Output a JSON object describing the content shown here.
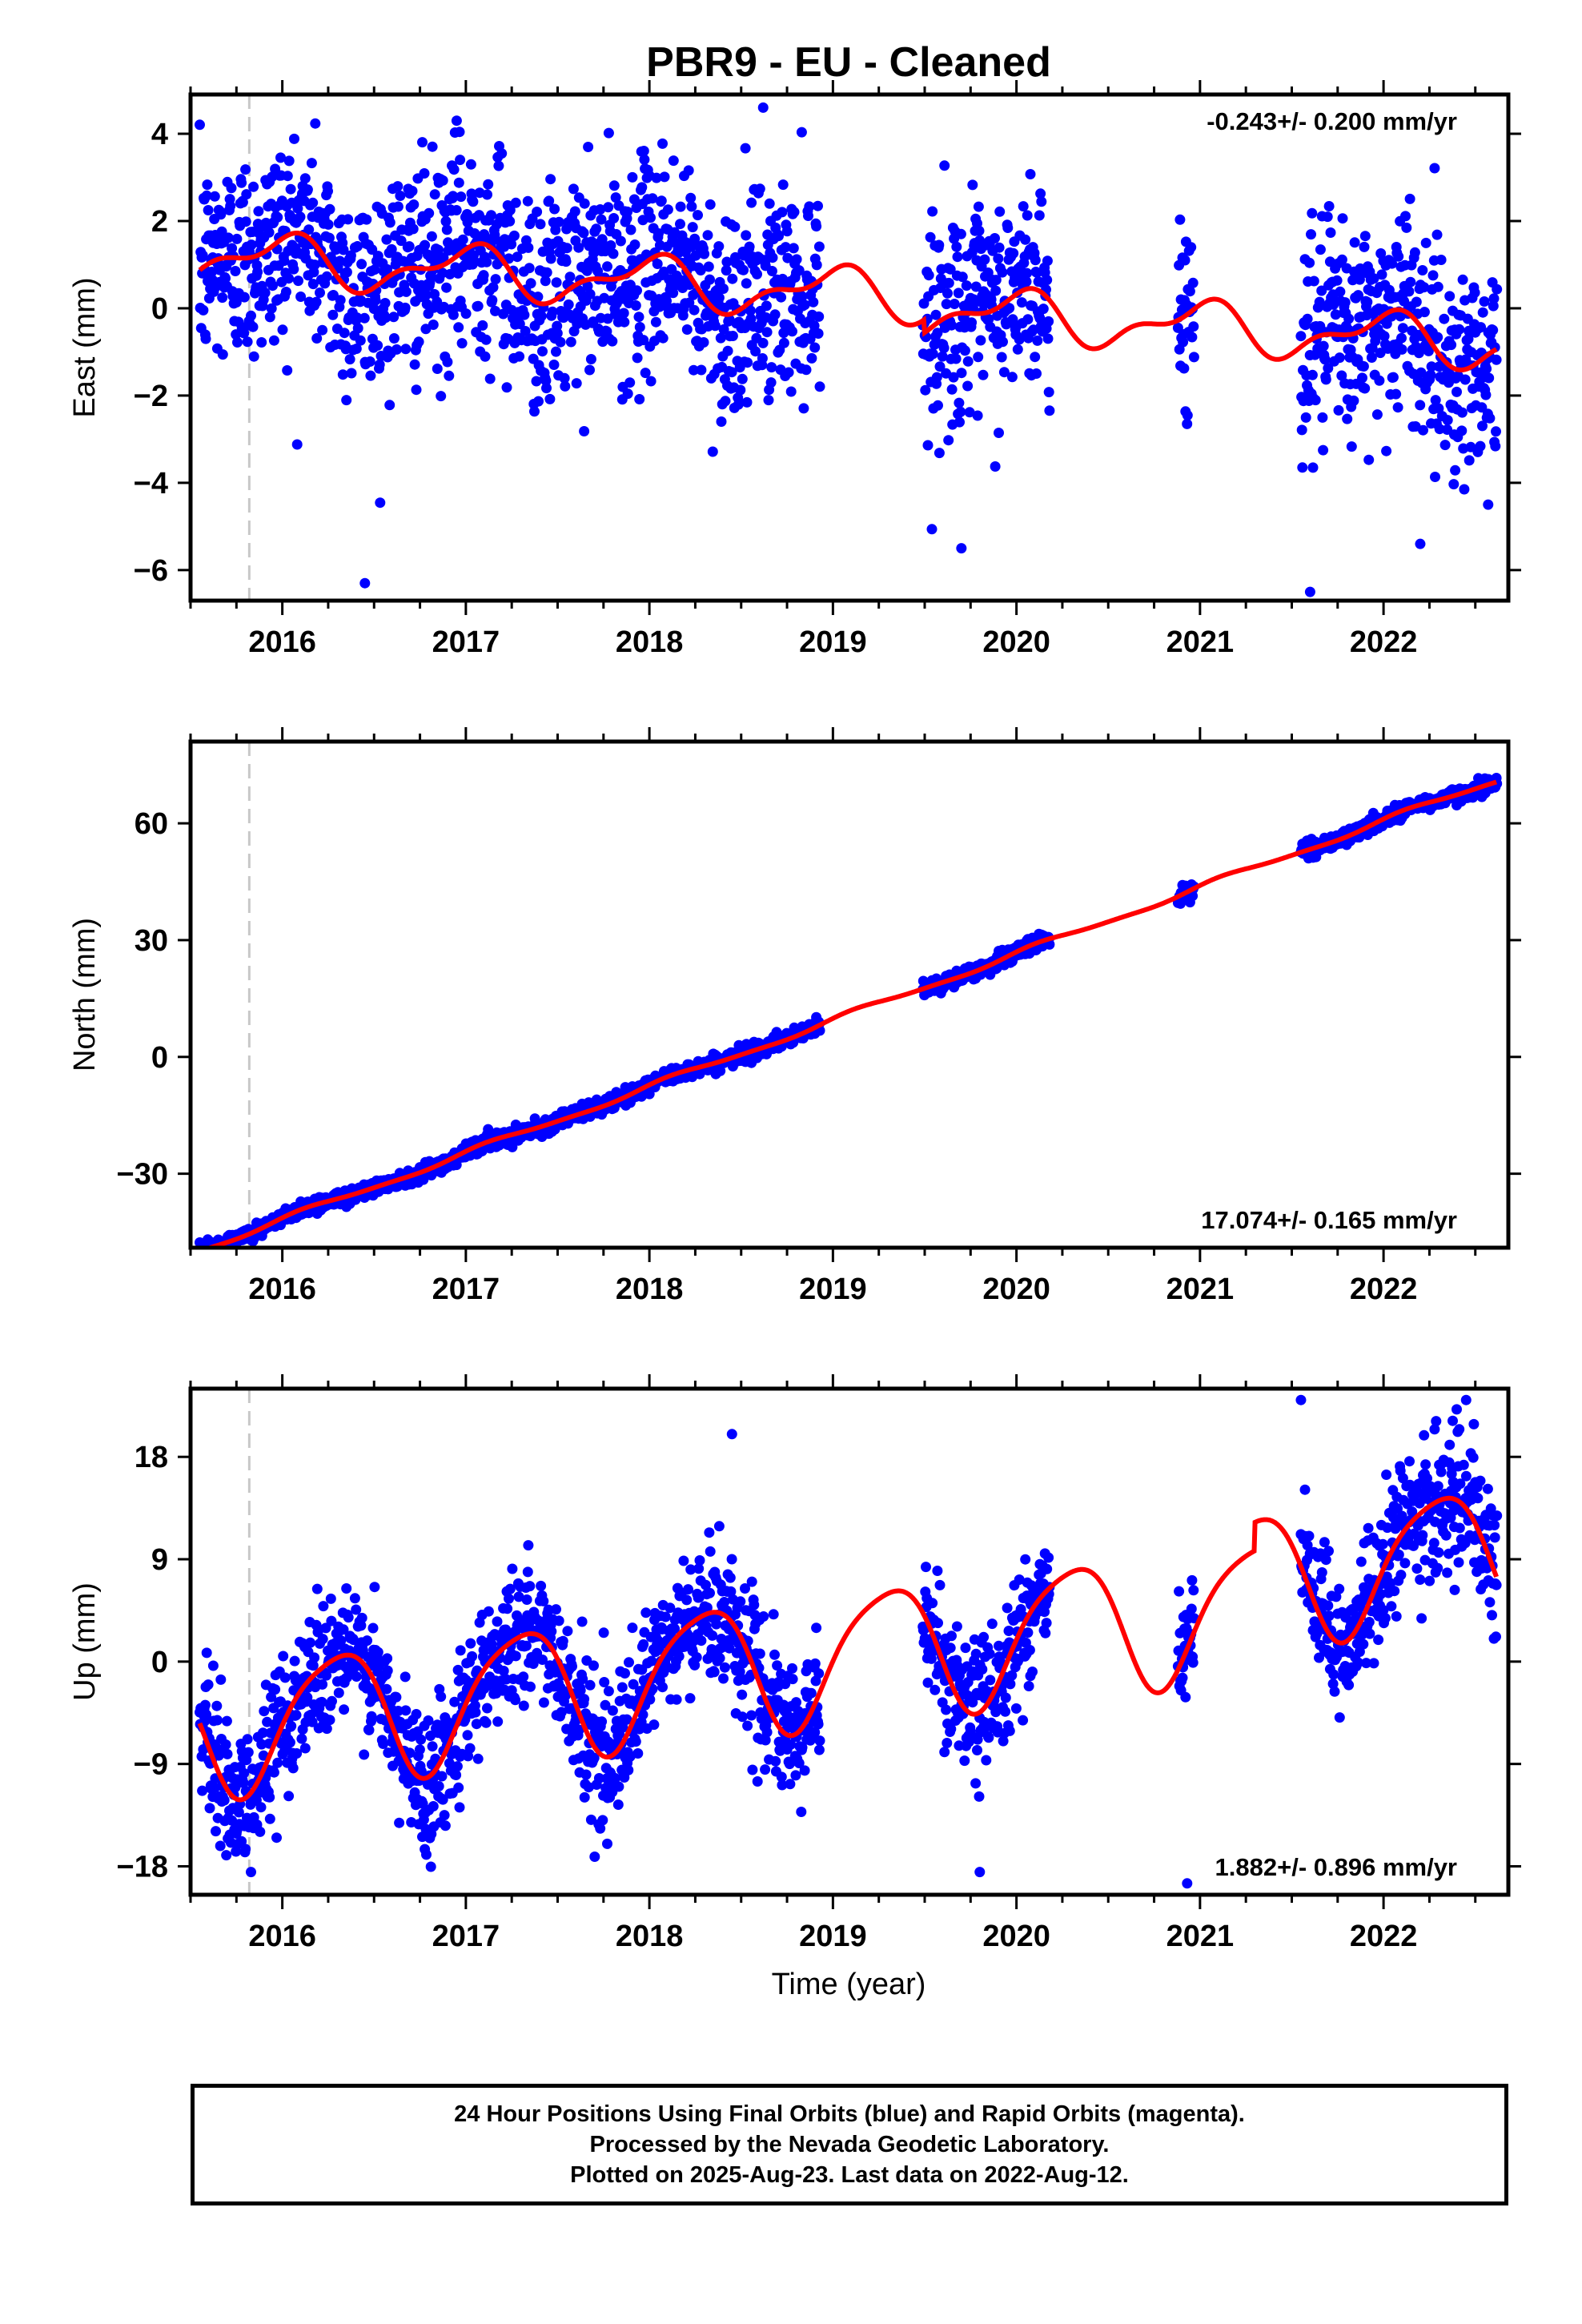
{
  "title": "PBR9  - EU - Cleaned",
  "xlabel": "Time (year)",
  "footer": {
    "line1": "24 Hour Positions Using Final Orbits (blue) and Rapid Orbits (magenta).",
    "line2": "Processed by the Nevada Geodetic Laboratory.",
    "line3": "Plotted on 2025-Aug-23. Last data on 2022-Aug-12."
  },
  "colors": {
    "points": "#0000ff",
    "model": "#ff0000",
    "dashed": "#c8c8c8"
  },
  "chart_data": [
    {
      "type": "scatter",
      "component": "East",
      "ylabel": "East (mm)",
      "rate_label": "-0.243+/- 0.200 mm/yr",
      "rate_position": "top-right",
      "xlim": [
        2015.5,
        2022.68
      ],
      "ylim": [
        -6.7,
        4.9
      ],
      "yticks": [
        4,
        2,
        0,
        -2,
        -4,
        -6
      ],
      "ytick_labels": [
        "4",
        "2",
        "0",
        "−2",
        "−4",
        "−6"
      ],
      "xticks": [
        2016,
        2017,
        2018,
        2019,
        2020,
        2021,
        2022
      ],
      "xtick_labels": [
        "2016",
        "2017",
        "2018",
        "2019",
        "2020",
        "2021",
        "2022"
      ],
      "dashed_line_x": 2015.82,
      "model": {
        "rate": -0.243,
        "intercept": 0.5,
        "annual_sin": 0.0,
        "annual_cos": 0.5,
        "semi_sin": 0.25,
        "semi_cos": 0.0,
        "offset_after": {
          "x": 2019.5,
          "value": -0.3
        }
      },
      "scatter_sigma": 1.2,
      "segments": [
        [
          2015.55,
          2018.93
        ],
        [
          2019.49,
          2020.18
        ],
        [
          2020.88,
          2020.97
        ],
        [
          2021.55,
          2022.62
        ]
      ],
      "outliers": [
        [
          2016.45,
          -6.3
        ],
        [
          2021.6,
          -6.5
        ],
        [
          2018.62,
          4.6
        ],
        [
          2016.95,
          4.3
        ],
        [
          2019.7,
          -5.5
        ],
        [
          2022.57,
          -4.5
        ],
        [
          2022.2,
          -5.4
        ]
      ]
    },
    {
      "type": "scatter",
      "component": "North",
      "ylabel": "North (mm)",
      "rate_label": "17.074+/- 0.165 mm/yr",
      "rate_position": "bottom-right",
      "xlim": [
        2015.5,
        2022.68
      ],
      "ylim": [
        -49,
        81
      ],
      "yticks": [
        60,
        30,
        0,
        -30
      ],
      "ytick_labels": [
        "60",
        "30",
        "0",
        "−30"
      ],
      "xticks": [
        2016,
        2017,
        2018,
        2019,
        2020,
        2021,
        2022
      ],
      "xtick_labels": [
        "2016",
        "2017",
        "2018",
        "2019",
        "2020",
        "2021",
        "2022"
      ],
      "dashed_line_x": 2015.82,
      "model": {
        "rate": 17.074,
        "intercept": 0,
        "t0": 2018.45,
        "annual_sin": 0.6,
        "annual_cos": 0.4,
        "semi_sin": 0.2,
        "semi_cos": 0.1
      },
      "scatter_sigma": 1.0,
      "segments": [
        [
          2015.55,
          2018.93
        ],
        [
          2019.49,
          2020.18
        ],
        [
          2020.88,
          2020.97
        ],
        [
          2021.55,
          2022.62
        ]
      ],
      "outliers": []
    },
    {
      "type": "scatter",
      "component": "Up",
      "ylabel": "Up (mm)",
      "rate_label": "1.882+/- 0.896 mm/yr",
      "rate_position": "bottom-right",
      "xlim": [
        2015.5,
        2022.68
      ],
      "ylim": [
        -20.5,
        24
      ],
      "yticks": [
        18,
        9,
        0,
        -9,
        -18
      ],
      "ytick_labels": [
        "18",
        "9",
        "0",
        "−9",
        "−18"
      ],
      "xticks": [
        2016,
        2017,
        2018,
        2019,
        2020,
        2021,
        2022
      ],
      "xtick_labels": [
        "2016",
        "2017",
        "2018",
        "2019",
        "2020",
        "2021",
        "2022"
      ],
      "dashed_line_x": 2015.82,
      "model": {
        "rate": 1.882,
        "intercept": -0.5,
        "t0": 2018.45,
        "annual_sin": 5.5,
        "annual_cos": -1.5,
        "semi_sin": 0.0,
        "semi_cos": 1.0,
        "offset_after": {
          "x": 2021.3,
          "value": 2.5
        }
      },
      "scatter_sigma": 3.0,
      "segments": [
        [
          2015.55,
          2018.93
        ],
        [
          2019.49,
          2020.18
        ],
        [
          2020.88,
          2020.97
        ],
        [
          2021.55,
          2022.62
        ]
      ],
      "outliers": [
        [
          2020.93,
          -19.5
        ],
        [
          2019.8,
          -18.5
        ],
        [
          2021.55,
          23
        ],
        [
          2022.45,
          23
        ],
        [
          2018.45,
          20
        ]
      ]
    }
  ]
}
